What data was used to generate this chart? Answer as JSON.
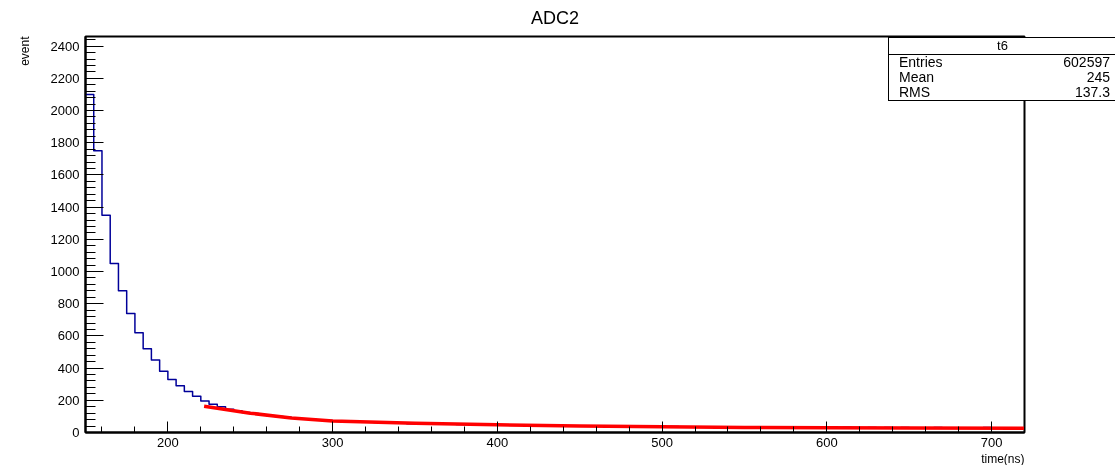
{
  "chart_data": {
    "type": "histogram",
    "title": "ADC2",
    "xlabel": "time(ns)",
    "ylabel": "event",
    "bins": [
      150,
      155,
      160,
      165,
      170,
      175,
      180,
      185,
      190,
      195,
      200,
      205,
      210,
      215,
      220,
      225,
      230,
      235,
      240,
      245,
      250,
      255,
      260,
      265,
      270,
      275,
      280,
      285,
      290,
      295,
      300,
      305,
      310,
      315,
      320,
      325,
      330,
      335,
      340,
      345,
      350,
      355,
      360,
      365,
      370,
      375,
      380,
      385,
      390,
      395,
      400,
      405,
      410,
      415,
      420,
      425,
      430,
      435,
      440,
      445,
      450,
      455,
      460,
      465,
      470,
      475,
      480,
      485,
      490,
      495,
      500,
      505,
      510,
      515,
      520,
      525,
      530,
      535,
      540,
      545,
      550,
      555,
      560,
      565,
      570,
      575,
      580,
      585,
      590,
      595,
      600,
      605,
      610,
      615,
      620,
      625,
      630,
      635,
      640,
      645,
      650,
      655,
      660,
      665,
      670,
      675,
      680,
      685,
      690,
      695,
      700,
      705,
      710,
      715,
      720
    ],
    "values": [
      2100,
      1750,
      1350,
      1050,
      880,
      740,
      620,
      520,
      450,
      380,
      330,
      290,
      255,
      225,
      195,
      175,
      160,
      145,
      135,
      125,
      118,
      110,
      104,
      100,
      95,
      90,
      86,
      82,
      78,
      75,
      72,
      70,
      68,
      66,
      63,
      62,
      60,
      58,
      57,
      55,
      54,
      53,
      52,
      51,
      52,
      50,
      49,
      50,
      48,
      47,
      48,
      46,
      45,
      46,
      44,
      43,
      44,
      42,
      42,
      41,
      40,
      41,
      40,
      39,
      40,
      38,
      38,
      39,
      37,
      37,
      36,
      37,
      36,
      35,
      36,
      35,
      34,
      35,
      34,
      33,
      34,
      33,
      34,
      33,
      32,
      33,
      32,
      33,
      32,
      31,
      32,
      31,
      32,
      31,
      30,
      31,
      30,
      31,
      30,
      31,
      30,
      29,
      30,
      31,
      30,
      29,
      30,
      29,
      30,
      31,
      30,
      29,
      30,
      29
    ],
    "color": "#000099",
    "series": [
      {
        "type": "line",
        "color": "#ff0000",
        "x": [
          222,
          250,
          275,
          300,
          350,
          400,
          450,
          500,
          550,
          600,
          650,
          720
        ],
        "values": [
          163,
          120,
          90,
          71,
          57,
          48,
          40,
          35,
          31,
          29,
          28,
          27
        ]
      }
    ],
    "xlim": [
      150,
      720
    ],
    "ylim": [
      0,
      2460
    ],
    "xticks": [
      200,
      300,
      400,
      500,
      600,
      700
    ],
    "yticks": [
      0,
      200,
      400,
      600,
      800,
      1000,
      1200,
      1400,
      1600,
      1800,
      2000,
      2200,
      2400
    ],
    "grid": false,
    "annotations": [
      "t6",
      "Entries",
      "602597",
      "Mean",
      "245",
      "RMS",
      "137.3"
    ]
  }
}
